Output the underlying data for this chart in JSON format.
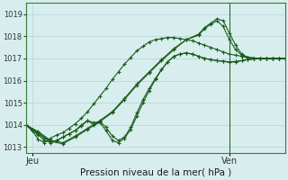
{
  "xlabel": "Pression niveau de la mer( hPa )",
  "bg_color": "#d8eeee",
  "grid_color": "#b8d8d8",
  "line_color": "#1a5c1a",
  "ylim": [
    1012.75,
    1019.5
  ],
  "xlim": [
    0,
    42
  ],
  "yticks": [
    1013,
    1014,
    1015,
    1016,
    1017,
    1018,
    1019
  ],
  "xtick_positions": [
    1,
    33
  ],
  "xtick_labels": [
    "Jeu",
    "Ven"
  ],
  "vline_x": 33,
  "lines": [
    [
      0,
      1014.0,
      1,
      1013.75,
      2,
      1013.35,
      3,
      1013.2,
      4,
      1013.4,
      5,
      1013.55,
      6,
      1013.65,
      7,
      1013.85,
      8,
      1014.05,
      9,
      1014.3,
      10,
      1014.6,
      11,
      1014.95,
      12,
      1015.3,
      13,
      1015.65,
      14,
      1016.05,
      15,
      1016.4,
      16,
      1016.75,
      17,
      1017.05,
      18,
      1017.35,
      19,
      1017.55,
      20,
      1017.75,
      21,
      1017.85,
      22,
      1017.9,
      23,
      1017.95,
      24,
      1017.95,
      25,
      1017.9,
      26,
      1017.85,
      27,
      1017.8,
      28,
      1017.7,
      29,
      1017.6,
      30,
      1017.5,
      31,
      1017.4,
      32,
      1017.3,
      33,
      1017.2,
      34,
      1017.15,
      35,
      1017.1,
      36,
      1017.05,
      37,
      1017.02,
      38,
      1017.0,
      39,
      1017.0,
      40,
      1017.0,
      41,
      1017.0,
      42,
      1017.0
    ],
    [
      0,
      1014.0,
      2,
      1013.7,
      4,
      1013.3,
      6,
      1013.2,
      8,
      1013.5,
      10,
      1013.85,
      12,
      1014.2,
      14,
      1014.6,
      16,
      1015.2,
      18,
      1015.85,
      20,
      1016.4,
      22,
      1016.95,
      24,
      1017.45,
      26,
      1017.85,
      28,
      1018.05,
      29,
      1018.35,
      30,
      1018.55,
      31,
      1018.7,
      32,
      1018.45,
      33,
      1017.85,
      34,
      1017.4,
      35,
      1017.15,
      36,
      1017.05,
      37,
      1017.02,
      38,
      1017.0,
      39,
      1017.0,
      40,
      1017.0,
      41,
      1017.0,
      42,
      1017.0
    ],
    [
      0,
      1014.0,
      2,
      1013.65,
      4,
      1013.25,
      6,
      1013.15,
      8,
      1013.45,
      10,
      1013.8,
      12,
      1014.15,
      14,
      1014.55,
      16,
      1015.15,
      18,
      1015.8,
      20,
      1016.35,
      22,
      1016.9,
      24,
      1017.4,
      26,
      1017.85,
      28,
      1018.1,
      29,
      1018.4,
      30,
      1018.6,
      31,
      1018.8,
      32,
      1018.7,
      33,
      1018.15,
      34,
      1017.6,
      35,
      1017.2,
      36,
      1017.05,
      37,
      1017.02,
      38,
      1017.0,
      39,
      1017.0,
      40,
      1017.0,
      41,
      1017.0,
      42,
      1017.0
    ],
    [
      0,
      1014.0,
      1,
      1013.75,
      2,
      1013.55,
      3,
      1013.3,
      4,
      1013.2,
      5,
      1013.3,
      6,
      1013.45,
      7,
      1013.6,
      8,
      1013.75,
      9,
      1013.95,
      10,
      1014.2,
      11,
      1014.0,
      12,
      1014.1,
      13,
      1013.75,
      14,
      1013.3,
      15,
      1013.2,
      16,
      1013.4,
      17,
      1013.8,
      18,
      1014.4,
      19,
      1015.0,
      20,
      1015.55,
      21,
      1016.05,
      22,
      1016.5,
      23,
      1016.85,
      24,
      1017.1,
      25,
      1017.2,
      26,
      1017.25,
      27,
      1017.2,
      28,
      1017.1,
      29,
      1017.0,
      30,
      1016.95,
      31,
      1016.9,
      32,
      1016.88,
      33,
      1016.85,
      34,
      1016.87,
      35,
      1016.9,
      36,
      1016.95,
      37,
      1016.98,
      38,
      1017.0,
      39,
      1017.0,
      40,
      1017.0,
      41,
      1017.0,
      42,
      1017.0
    ],
    [
      0,
      1014.0,
      1,
      1013.8,
      2,
      1013.6,
      3,
      1013.4,
      4,
      1013.25,
      5,
      1013.3,
      6,
      1013.45,
      7,
      1013.6,
      8,
      1013.75,
      9,
      1014.0,
      10,
      1014.2,
      11,
      1014.1,
      12,
      1014.15,
      13,
      1013.9,
      14,
      1013.5,
      15,
      1013.3,
      16,
      1013.45,
      17,
      1013.9,
      18,
      1014.55,
      19,
      1015.15,
      20,
      1015.65,
      21,
      1016.1,
      22,
      1016.5,
      23,
      1016.85,
      24,
      1017.1,
      25,
      1017.2,
      26,
      1017.25,
      27,
      1017.2,
      28,
      1017.1,
      29,
      1017.0,
      30,
      1016.95,
      31,
      1016.9,
      32,
      1016.87,
      33,
      1016.83,
      34,
      1016.85,
      35,
      1016.9,
      36,
      1016.95,
      37,
      1016.98,
      38,
      1017.0,
      39,
      1017.0,
      40,
      1017.0,
      41,
      1017.0,
      42,
      1017.0
    ]
  ]
}
